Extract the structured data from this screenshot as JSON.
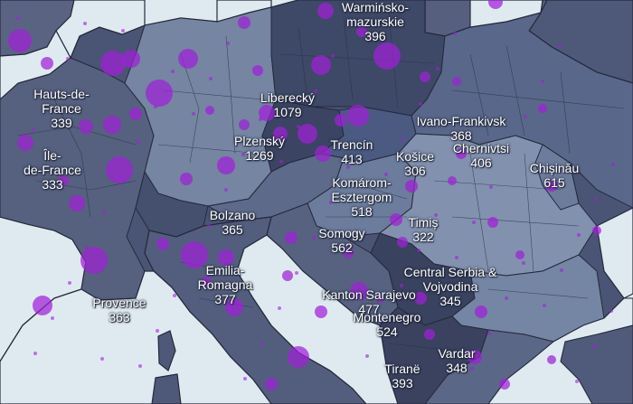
{
  "map": {
    "colors": {
      "sea": "#dfeaf0",
      "land_dark": "#3d4664",
      "land_mid": "#4e5878",
      "land_light": "#6a7896",
      "land_pale": "#8e9cb4",
      "border": "#25293c",
      "bubble": "#a020d8",
      "label_text": "#ffffff"
    },
    "regions": [
      {
        "name": "Warmińsko-mazurskie",
        "lines": [
          "Warmińsko-",
          "mazurskie"
        ],
        "value": "396"
      },
      {
        "name": "Hauts-de-France",
        "lines": [
          "Hauts-de-",
          "France"
        ],
        "value": "339"
      },
      {
        "name": "Liberecký",
        "lines": [
          "Liberecký"
        ],
        "value": "1079"
      },
      {
        "name": "Ivano-Frankivsk",
        "lines": [
          "Ivano-Frankivsk"
        ],
        "value": "368"
      },
      {
        "name": "Plzenský",
        "lines": [
          "Plzenský"
        ],
        "value": "1269"
      },
      {
        "name": "Trencín",
        "lines": [
          "Trencín"
        ],
        "value": "413"
      },
      {
        "name": "Chernivtsi",
        "lines": [
          "Chernivtsi"
        ],
        "value": "406"
      },
      {
        "name": "Île-de-France",
        "lines": [
          "Île-",
          "de-France"
        ],
        "value": "333"
      },
      {
        "name": "Košice",
        "lines": [
          "Košice"
        ],
        "value": "306"
      },
      {
        "name": "Chișinău",
        "lines": [
          "Chișinău"
        ],
        "value": "615"
      },
      {
        "name": "Komárom-Esztergom",
        "lines": [
          "Komárom-",
          "Esztergom"
        ],
        "value": "518"
      },
      {
        "name": "Bolzano",
        "lines": [
          "Bolzano"
        ],
        "value": "365"
      },
      {
        "name": "Timiș",
        "lines": [
          "Timiș"
        ],
        "value": "322"
      },
      {
        "name": "Somogy",
        "lines": [
          "Somogy"
        ],
        "value": "562"
      },
      {
        "name": "Central Serbia & Vojvodina",
        "lines": [
          "Central Serbia &",
          "Vojvodina"
        ],
        "value": "345"
      },
      {
        "name": "Emilia-Romagna",
        "lines": [
          "Emilia-",
          "Romagna"
        ],
        "value": "377"
      },
      {
        "name": "Kanton Sarajevo",
        "lines": [
          "Kanton Sarajevo"
        ],
        "value": "477"
      },
      {
        "name": "Provence",
        "lines": [
          "Provence"
        ],
        "value": "363"
      },
      {
        "name": "Montenegro",
        "lines": [
          "Montenegro"
        ],
        "value": "524"
      },
      {
        "name": "Vardar",
        "lines": [
          "Vardar"
        ],
        "value": "348"
      },
      {
        "name": "Tiranë",
        "lines": [
          "Tiranë"
        ],
        "value": "393"
      }
    ]
  }
}
